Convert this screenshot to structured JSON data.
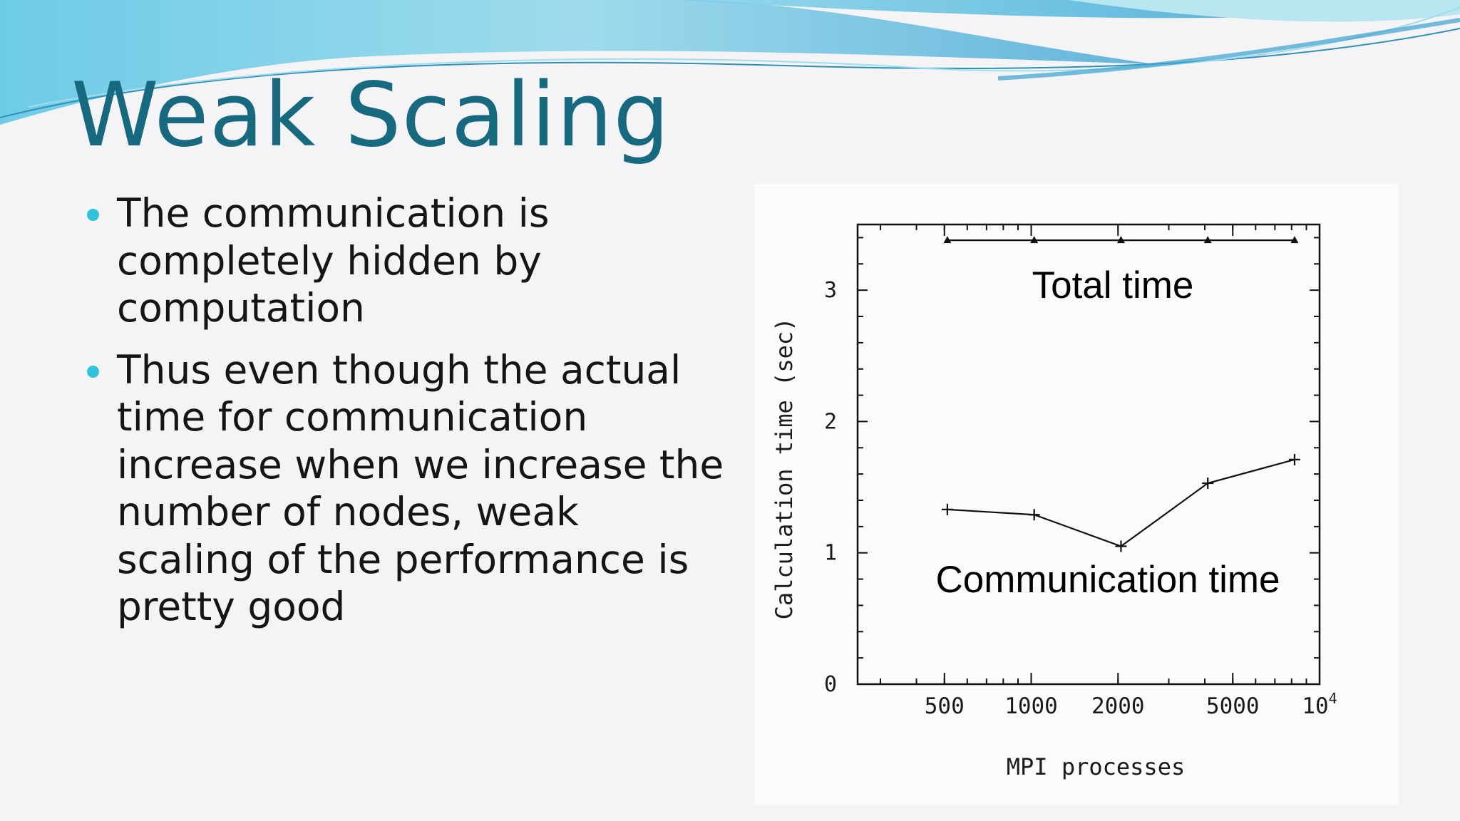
{
  "slide": {
    "title": "Weak Scaling",
    "bullets": [
      "The communication is completely hidden by computation",
      "Thus even though the actual time for communication increase when we increase the number of nodes, weak scaling of the performance is pretty good"
    ]
  },
  "colors": {
    "title": "#17697f",
    "bullet_dot": "#2fc2d9",
    "text": "#151515"
  },
  "chart_data": {
    "type": "line",
    "xlabel": "MPI processes",
    "ylabel": "Calculation time (sec)",
    "x_scale": "log",
    "xlim": [
      250,
      10000
    ],
    "ylim": [
      0,
      3.5
    ],
    "x_ticks": [
      {
        "value": 500,
        "label": "500"
      },
      {
        "value": 1000,
        "label": "1000"
      },
      {
        "value": 2000,
        "label": "2000"
      },
      {
        "value": 5000,
        "label": "5000"
      },
      {
        "value": 10000,
        "label": "10",
        "sup": "4"
      }
    ],
    "y_ticks": [
      {
        "value": 0,
        "label": "0"
      },
      {
        "value": 1,
        "label": "1"
      },
      {
        "value": 2,
        "label": "2"
      },
      {
        "value": 3,
        "label": "3"
      }
    ],
    "series": [
      {
        "name": "Total time",
        "marker": "triangle",
        "x": [
          512,
          1024,
          2048,
          4096,
          8192
        ],
        "y": [
          3.38,
          3.38,
          3.38,
          3.38,
          3.38
        ]
      },
      {
        "name": "Communication time",
        "marker": "plus",
        "x": [
          512,
          1024,
          2048,
          4096,
          8192
        ],
        "y": [
          1.33,
          1.29,
          1.05,
          1.53,
          1.71
        ]
      }
    ],
    "annotations": [
      {
        "text": "Total time",
        "series": 0
      },
      {
        "text": "Communication time",
        "series": 1
      }
    ]
  }
}
